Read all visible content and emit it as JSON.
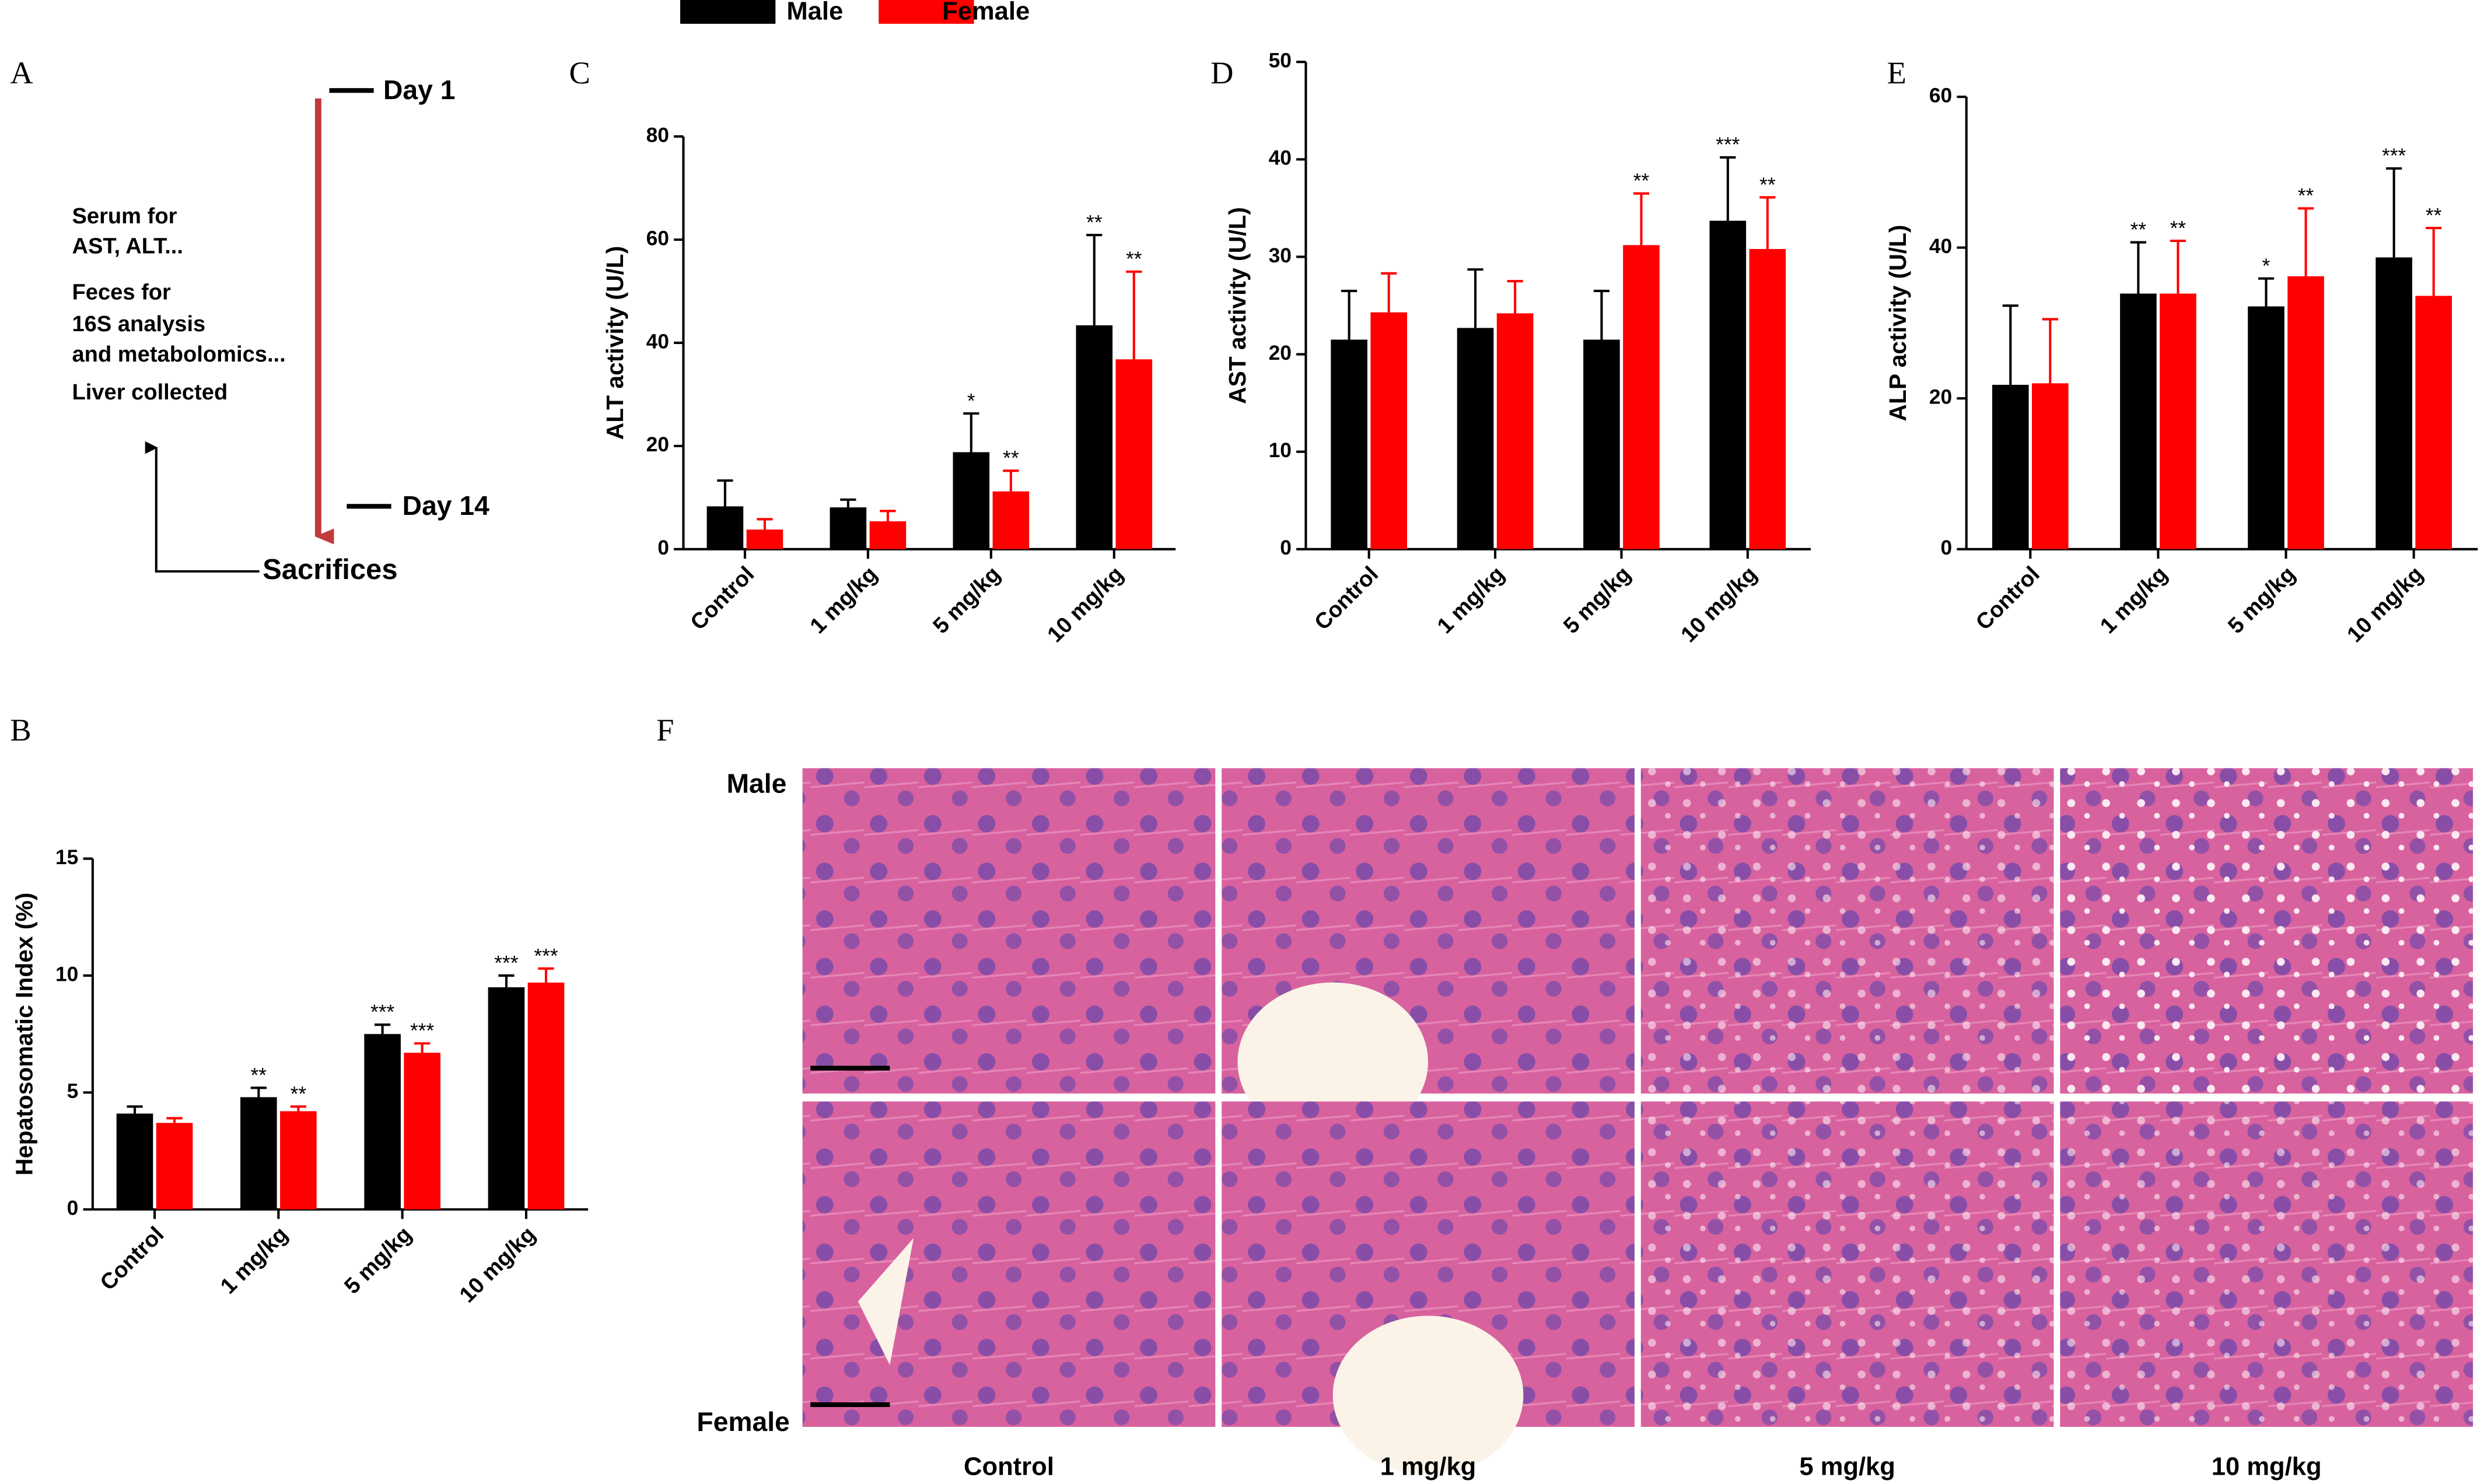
{
  "legend": [
    {
      "name": "Male",
      "color": "#000000"
    },
    {
      "name": "Female",
      "color": "#ff0000"
    }
  ],
  "panel_a": {
    "letter": "A",
    "day_start": "Day 1",
    "day_end": "Day 14",
    "notes": [
      "Serum for",
      "AST, ALT...",
      "Feces for",
      "16S analysis",
      "and metabolomics...",
      "Liver collected"
    ],
    "endpoint": "Sacrifices"
  },
  "chart_data": [
    {
      "type": "bar",
      "letter": "B",
      "y_label": "Hepatosomatic Index (%)",
      "categories": [
        "Control",
        "1 mg/kg",
        "5 mg/kg",
        "10 mg/kg"
      ],
      "ylim": [
        0,
        15
      ],
      "yticks": [
        0,
        5,
        10,
        15
      ],
      "series": [
        {
          "values": [
            4.1,
            4.8,
            7.5,
            9.5
          ],
          "errors": [
            0.3,
            0.4,
            0.4,
            0.5
          ],
          "significance": [
            null,
            "**",
            "***",
            "***"
          ]
        },
        {
          "values": [
            3.7,
            4.2,
            6.7,
            9.7
          ],
          "errors": [
            0.2,
            0.2,
            0.4,
            0.6
          ],
          "significance": [
            null,
            "**",
            "***",
            "***"
          ]
        }
      ]
    },
    {
      "type": "bar",
      "letter": "C",
      "y_label": "ALT activity (U/L)",
      "categories": [
        "Control",
        "1 mg/kg",
        "5 mg/kg",
        "10 mg/kg"
      ],
      "ylim": [
        0,
        80
      ],
      "yticks": [
        0,
        20,
        40,
        60,
        80
      ],
      "series": [
        {
          "values": [
            8.3,
            8.1,
            18.8,
            43.4
          ],
          "errors": [
            5,
            1.5,
            7.5,
            17.5
          ],
          "significance": [
            null,
            null,
            "*",
            "**"
          ]
        },
        {
          "values": [
            3.8,
            5.4,
            11.2,
            36.8
          ],
          "errors": [
            2,
            2,
            4,
            17
          ],
          "significance": [
            null,
            null,
            "**",
            "**"
          ]
        }
      ]
    },
    {
      "type": "bar",
      "letter": "D",
      "y_label": "AST activity (U/L)",
      "categories": [
        "Control",
        "1 mg/kg",
        "5 mg/kg",
        "10 mg/kg"
      ],
      "ylim": [
        0,
        50
      ],
      "yticks": [
        0,
        10,
        20,
        30,
        40,
        50
      ],
      "series": [
        {
          "values": [
            21.5,
            22.7,
            21.5,
            33.7
          ],
          "errors": [
            5,
            6,
            5,
            6.5
          ],
          "significance": [
            null,
            null,
            null,
            "***"
          ]
        },
        {
          "values": [
            24.3,
            24.2,
            31.2,
            30.8
          ],
          "errors": [
            4,
            3.3,
            5.3,
            5.3
          ],
          "significance": [
            null,
            null,
            "**",
            "**"
          ]
        }
      ]
    },
    {
      "type": "bar",
      "letter": "E",
      "y_label": "ALP activity (U/L)",
      "categories": [
        "Control",
        "1 mg/kg",
        "5 mg/kg",
        "10 mg/kg"
      ],
      "ylim": [
        0,
        60
      ],
      "yticks": [
        0,
        20,
        40,
        60
      ],
      "series": [
        {
          "values": [
            21.8,
            33.9,
            32.2,
            38.7
          ],
          "errors": [
            10.5,
            6.8,
            3.7,
            11.8
          ],
          "significance": [
            null,
            "**",
            "*",
            "***"
          ]
        },
        {
          "values": [
            22,
            33.9,
            36.2,
            33.6
          ],
          "errors": [
            8.5,
            7,
            9,
            9
          ],
          "significance": [
            null,
            "**",
            "**",
            "**"
          ]
        }
      ]
    }
  ],
  "panel_f": {
    "letter": "F",
    "rows": [
      "Male",
      "Female"
    ],
    "columns": [
      "Control",
      "1 mg/kg",
      "5 mg/kg",
      "10 mg/kg"
    ]
  }
}
